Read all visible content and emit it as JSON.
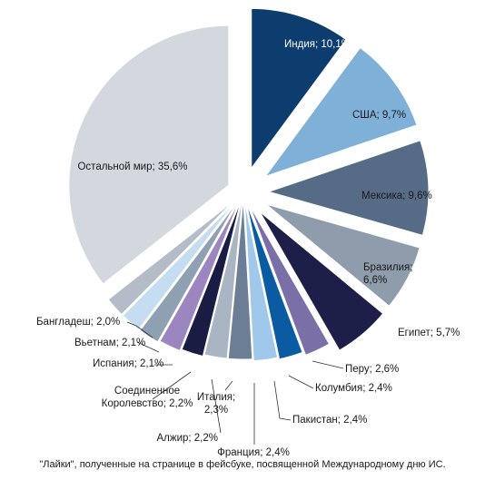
{
  "caption": "\"Лайки\", полученные на странице в фейсбуке, посвященной Международному дню ИС.",
  "chart_data": {
    "type": "pie",
    "title": "",
    "slices": [
      {
        "label": "Индия",
        "value_label": "Индия; 10,1%",
        "value": 10.1,
        "color": "#0d3d6e",
        "lines": [
          "Индия; 10,1%"
        ]
      },
      {
        "label": "США",
        "value_label": "США; 9,7%",
        "value": 9.7,
        "color": "#7fb0d8",
        "lines": [
          "США; 9,7%"
        ]
      },
      {
        "label": "Мексика",
        "value_label": "Мексика; 9,6%",
        "value": 9.6,
        "color": "#556b86",
        "lines": [
          "Мексика; 9,6%"
        ]
      },
      {
        "label": "Бразилия",
        "value_label": "Бразилия; 6,6%",
        "value": 6.6,
        "color": "#8e9cac",
        "lines": [
          "Бразилия;",
          "6,6%"
        ]
      },
      {
        "label": "Египет",
        "value_label": "Египет; 5,7%",
        "value": 5.7,
        "color": "#1e1f48",
        "lines": [
          "Египет; 5,7%"
        ]
      },
      {
        "label": "Перу",
        "value_label": "Перу; 2,6%",
        "value": 2.6,
        "color": "#7b6fa8",
        "lines": [
          "Перу; 2,6%"
        ]
      },
      {
        "label": "Колумбия",
        "value_label": "Колумбия; 2,4%",
        "value": 2.4,
        "color": "#0b5ba3",
        "lines": [
          "Колумбия; 2,4%"
        ]
      },
      {
        "label": "Пакистан",
        "value_label": "Пакистан; 2,4%",
        "value": 2.4,
        "color": "#9fc8ea",
        "lines": [
          "Пакистан; 2,4%"
        ]
      },
      {
        "label": "Франция",
        "value_label": "Франция; 2,4%",
        "value": 2.4,
        "color": "#6b7e95",
        "lines": [
          "Франция; 2,4%"
        ]
      },
      {
        "label": "Италия",
        "value_label": "Италия; 2,3%",
        "value": 2.3,
        "color": "#a9b5c2",
        "lines": [
          "Италия;",
          "2,3%"
        ]
      },
      {
        "label": "Алжир",
        "value_label": "Алжир; 2,2%",
        "value": 2.2,
        "color": "#1b1c44",
        "lines": [
          "Алжир; 2,2%"
        ]
      },
      {
        "label": "Соединенное Королевство",
        "value_label": "Соединенное Королевство; 2,2%",
        "value": 2.2,
        "color": "#9b86bf",
        "lines": [
          "Соединенное",
          "Королевство; 2,2%"
        ]
      },
      {
        "label": "Испания",
        "value_label": "Испания; 2,1%",
        "value": 2.1,
        "color": "#8fa0b3",
        "lines": [
          "Испания; 2,1%"
        ]
      },
      {
        "label": "Вьетнам",
        "value_label": "Вьетнам; 2,1%",
        "value": 2.1,
        "color": "#c4ddf1",
        "lines": [
          "Вьетнам; 2,1%"
        ]
      },
      {
        "label": "Бангладеш",
        "value_label": "Бангладеш; 2,0%",
        "value": 2.0,
        "color": "#b4bdc7",
        "lines": [
          "Бангладеш; 2,0%"
        ]
      },
      {
        "label": "Остальной мир",
        "value_label": "Остальной мир; 35,6%",
        "value": 35.6,
        "color": "#d3d8df",
        "lines": [
          "Остальной мир; 35,6%"
        ]
      }
    ]
  }
}
